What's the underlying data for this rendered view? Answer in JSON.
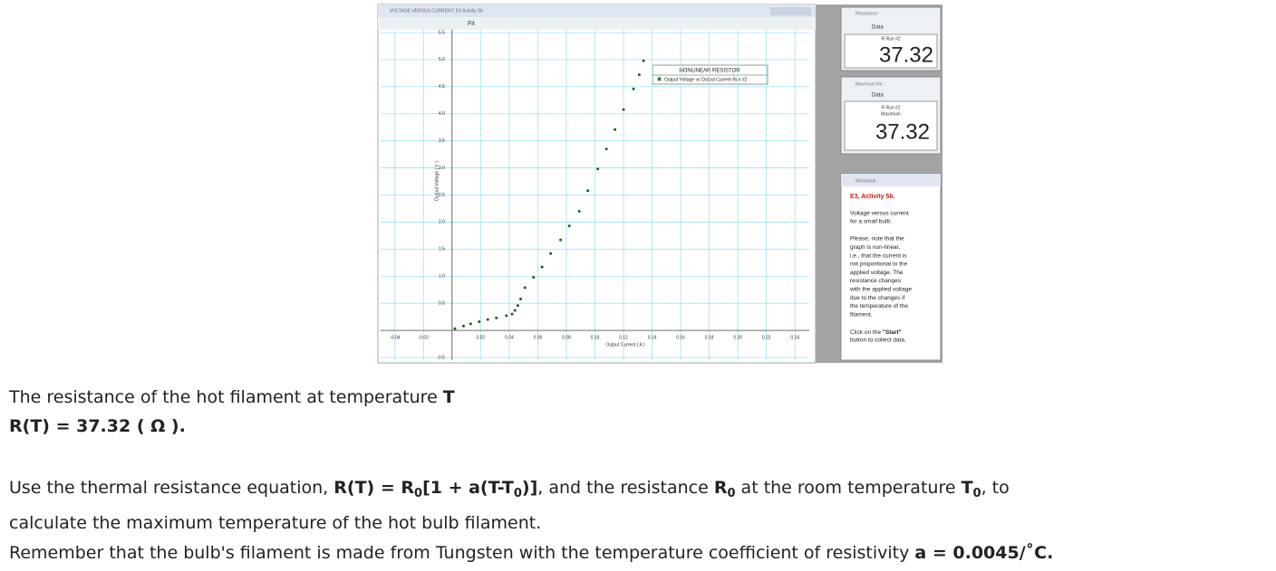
{
  "chart_data": {
    "type": "scatter",
    "window_title": "VOLTAGE VERSUS CURRENT: E3 Activity 5b",
    "legend_title": "NONLINEAR RESISTOR",
    "x_label": "Output Current ( A )",
    "y_label": "Output Voltage ( V )",
    "xlim": [
      -0.05,
      0.25
    ],
    "ylim": [
      -0.55,
      5.55
    ],
    "xticks": [
      -0.04,
      -0.02,
      0.02,
      0.04,
      0.06,
      0.08,
      {
        "value": 0.1,
        "label": "0.10"
      },
      0.12,
      0.14,
      0.16,
      0.18,
      {
        "value": 0.2,
        "label": "0.20"
      },
      0.22,
      0.24
    ],
    "yticks": [
      -0.5,
      0.5,
      {
        "value": 1,
        "label": "1.0"
      },
      1.5,
      {
        "value": 2,
        "label": "2.0"
      },
      2.5,
      {
        "value": 3,
        "label": "3.0"
      },
      3.5,
      {
        "value": 4,
        "label": "4.0"
      },
      4.5,
      {
        "value": 5,
        "label": "5.0"
      },
      5.5
    ],
    "grid": true,
    "series": [
      {
        "name": "Output Voltage vs Output Current Run #2",
        "color": "#1d5e1d",
        "x": [
          0.002,
          0.008,
          0.013,
          0.019,
          0.025,
          0.031,
          0.038,
          0.042,
          0.044,
          0.046,
          0.048,
          0.051,
          0.057,
          0.063,
          0.069,
          0.076,
          0.082,
          0.089,
          0.095,
          0.102,
          0.108,
          0.114,
          0.12,
          0.127,
          0.131,
          0.134
        ],
        "values": [
          0.03,
          0.08,
          0.12,
          0.16,
          0.2,
          0.23,
          0.27,
          0.3,
          0.37,
          0.46,
          0.58,
          0.79,
          0.98,
          1.17,
          1.42,
          1.67,
          1.93,
          2.2,
          2.58,
          2.98,
          3.35,
          3.71,
          4.08,
          4.46,
          4.72,
          4.98
        ]
      }
    ]
  },
  "toolbar": {
    "fit": "Fit",
    "data": "Data"
  },
  "resistance": {
    "title": "Resistance",
    "header": "R  Run #2",
    "value": "37.32"
  },
  "maximum": {
    "title": "Maximum Re...",
    "header": "R  Run #2",
    "sub": "Maximum",
    "value": "37.32"
  },
  "workbook": {
    "title": "Workbook",
    "heading": "E3, Activity 5b.",
    "intro": [
      "Voltage versus current",
      "for a small bulb."
    ],
    "note": [
      "Please, note that the",
      "graph is non-linear,",
      "i.e., that the current is",
      "not proportional to the",
      "applied voltage. The",
      "resistance changes",
      "with the applied voltage",
      "due to the changes if",
      "the temperature of the",
      "filament."
    ],
    "click": [
      "Click on the ",
      "\"Start\"",
      "button to collect data."
    ]
  },
  "text": {
    "line1": [
      "The resistance of the hot filament at temperature ",
      "T"
    ],
    "line2": "R(T) = 37.32 ( Ω ).",
    "para": [
      "Use the thermal resistance equation, ",
      "R(T) = R",
      "0",
      "[1 + a(T-T",
      "0",
      ")]",
      ", and the resistance ",
      "R",
      "0",
      " at the room temperature ",
      "T",
      "0",
      ", to"
    ],
    "para2": "calculate the maximum temperature of the hot bulb filament.",
    "para3": [
      "Remember that the bulb's filament is made from Tungsten with the temperature coefficient of resistivity ",
      "a = 0.0045/˚C."
    ]
  }
}
